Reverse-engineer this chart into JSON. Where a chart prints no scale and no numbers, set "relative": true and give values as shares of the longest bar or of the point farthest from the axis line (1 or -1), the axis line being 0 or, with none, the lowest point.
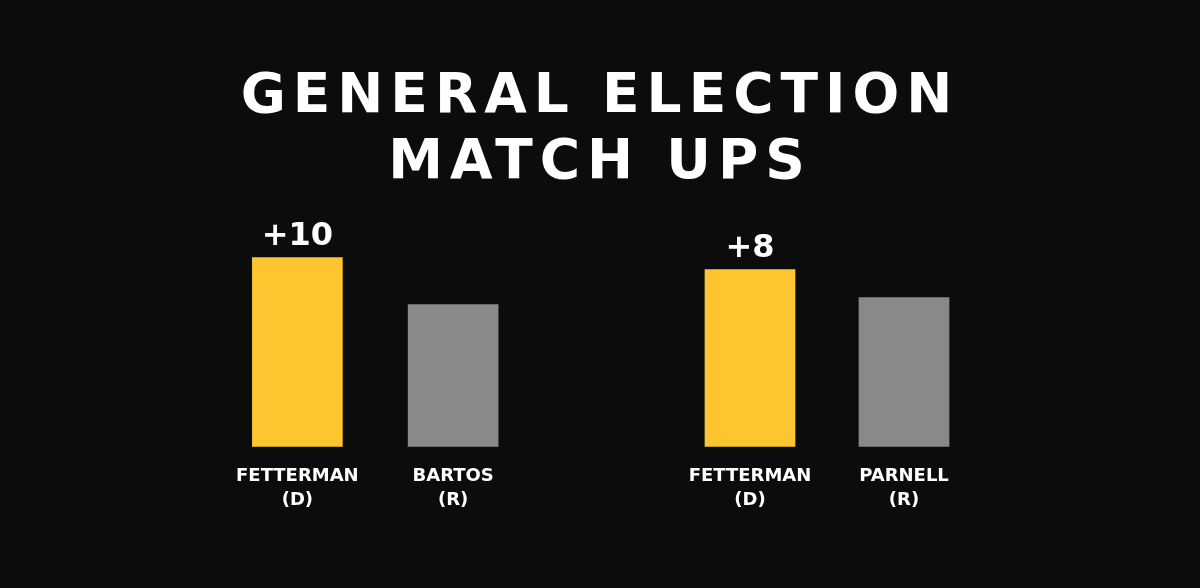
{
  "chart_data": [
    {
      "type": "bar",
      "title": "GENERAL ELECTION MATCH UPS",
      "categories": [
        "FETTERMAN\n(D)",
        "BARTOS\n(R)"
      ],
      "values": [
        1,
        0.75
      ],
      "colors": [
        "#fdc530",
        "#8a8987"
      ],
      "relative": true,
      "annotations": [
        {
          "text": "+10",
          "x": "FETTERMAN\n(D)",
          "y": 1
        }
      ]
    },
    {
      "type": "bar",
      "categories": [
        "FETTERMAN\n(D)",
        "PARNELL\n(R)"
      ],
      "values": [
        1,
        0.84
      ],
      "colors": [
        "#fdc530",
        "#8a8987"
      ],
      "relative": true,
      "annotations": [
        {
          "text": "+8",
          "x": "FETTERMAN\n(D)",
          "y": 1
        }
      ]
    }
  ]
}
